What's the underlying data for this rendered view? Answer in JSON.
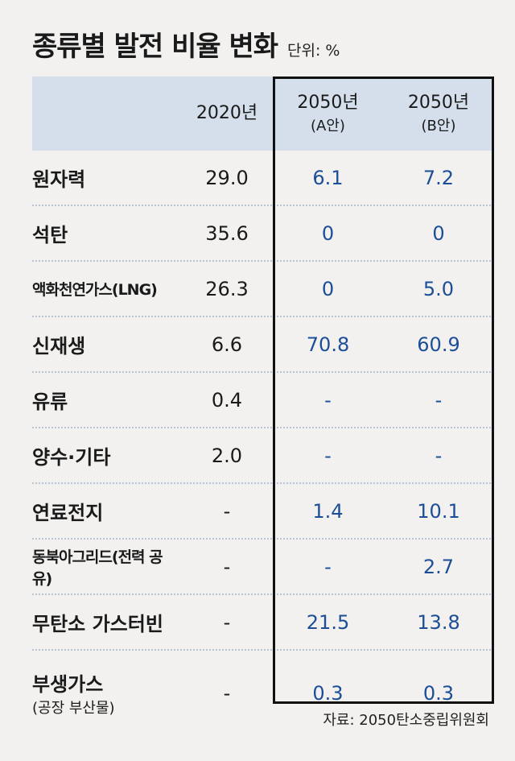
{
  "title": "종류별 발전 비율 변화",
  "unit": "단위: %",
  "source": "자료: 2050탄소중립위원회",
  "chart_data": {
    "type": "table",
    "columns": [
      {
        "label": "2020년",
        "sub": ""
      },
      {
        "label": "2050년",
        "sub": "(A안)"
      },
      {
        "label": "2050년",
        "sub": "(B안)"
      }
    ],
    "rows": [
      {
        "label": "원자력",
        "sub": "",
        "small": false,
        "values": [
          "29.0",
          "6.1",
          "7.2"
        ]
      },
      {
        "label": "석탄",
        "sub": "",
        "small": false,
        "values": [
          "35.6",
          "0",
          "0"
        ]
      },
      {
        "label": "액화천연가스(LNG)",
        "sub": "",
        "small": true,
        "values": [
          "26.3",
          "0",
          "5.0"
        ]
      },
      {
        "label": "신재생",
        "sub": "",
        "small": false,
        "values": [
          "6.6",
          "70.8",
          "60.9"
        ]
      },
      {
        "label": "유류",
        "sub": "",
        "small": false,
        "values": [
          "0.4",
          "-",
          "-"
        ]
      },
      {
        "label": "양수·기타",
        "sub": "",
        "small": false,
        "values": [
          "2.0",
          "-",
          "-"
        ]
      },
      {
        "label": "연료전지",
        "sub": "",
        "small": false,
        "values": [
          "-",
          "1.4",
          "10.1"
        ]
      },
      {
        "label": "동북아그리드(전력 공유)",
        "sub": "",
        "small": true,
        "values": [
          "-",
          "-",
          "2.7"
        ]
      },
      {
        "label": "무탄소 가스터빈",
        "sub": "",
        "small": false,
        "values": [
          "-",
          "21.5",
          "13.8"
        ]
      },
      {
        "label": "부생가스",
        "sub": "(공장 부산물)",
        "small": false,
        "values": [
          "-",
          "0.3",
          "0.3"
        ]
      }
    ]
  }
}
